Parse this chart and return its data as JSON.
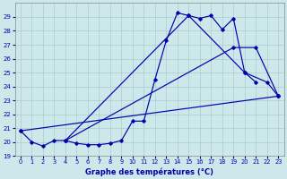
{
  "bg_color": "#cce8ea",
  "grid_color": "#aacccc",
  "line_color": "#0000aa",
  "xlabel": "Graphe des températures (°C)",
  "ylim": [
    19,
    30
  ],
  "xlim": [
    -0.5,
    23.5
  ],
  "yticks": [
    19,
    20,
    21,
    22,
    23,
    24,
    25,
    26,
    27,
    28,
    29
  ],
  "xticks": [
    0,
    1,
    2,
    3,
    4,
    5,
    6,
    7,
    8,
    9,
    10,
    11,
    12,
    13,
    14,
    15,
    16,
    17,
    18,
    19,
    20,
    21,
    22,
    23
  ],
  "curve1_x": [
    0,
    1,
    2,
    3,
    4,
    5,
    6,
    7,
    8,
    9,
    10,
    11,
    12,
    13,
    14,
    15,
    16,
    17,
    18,
    19,
    20,
    21
  ],
  "curve1_y": [
    20.8,
    20.0,
    19.7,
    20.1,
    20.1,
    19.9,
    19.8,
    19.8,
    19.9,
    20.1,
    21.5,
    21.5,
    24.5,
    27.3,
    29.3,
    29.1,
    28.9,
    29.1,
    28.1,
    28.9,
    25.0,
    24.3
  ],
  "curve2_x": [
    0,
    23
  ],
  "curve2_y": [
    20.8,
    23.3
  ],
  "curve3_x": [
    4,
    19,
    21,
    23
  ],
  "curve3_y": [
    20.1,
    26.8,
    26.8,
    23.3
  ],
  "curve4_x": [
    4,
    15,
    20,
    22,
    23
  ],
  "curve4_y": [
    20.1,
    29.1,
    25.0,
    24.3,
    23.3
  ]
}
